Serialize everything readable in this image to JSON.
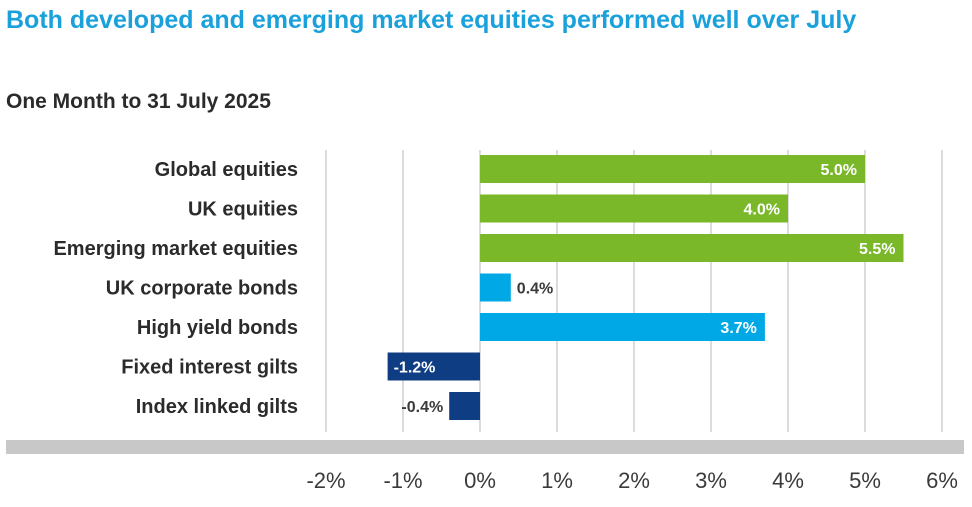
{
  "title": "Both developed and emerging market equities performed well over July",
  "subtitle": "One Month to 31 July 2025",
  "colors": {
    "equities": "#7ab829",
    "bonds": "#00a9e6",
    "gilts": "#0f3d83",
    "grid": "#c8c8c8",
    "axis_band": "#c8c8c8"
  },
  "chart_data": {
    "type": "bar",
    "orientation": "horizontal",
    "categories": [
      "Global equities",
      "UK equities",
      "Emerging market equities",
      "UK corporate bonds",
      "High yield bonds",
      "Fixed interest gilts",
      "Index linked gilts"
    ],
    "values": [
      5.0,
      4.0,
      5.5,
      0.4,
      3.7,
      -1.2,
      -0.4
    ],
    "value_labels": [
      "5.0%",
      "4.0%",
      "5.5%",
      "0.4%",
      "3.7%",
      "-1.2%",
      "-0.4%"
    ],
    "groups": [
      "equities",
      "equities",
      "equities",
      "bonds",
      "bonds",
      "gilts",
      "gilts"
    ],
    "xlim": [
      -2,
      6
    ],
    "xticks": [
      -2,
      -1,
      0,
      1,
      2,
      3,
      4,
      5,
      6
    ],
    "xtick_labels": [
      "-2%",
      "-1%",
      "0%",
      "1%",
      "2%",
      "3%",
      "4%",
      "5%",
      "6%"
    ],
    "grid": true,
    "xlabel": "",
    "ylabel": ""
  }
}
